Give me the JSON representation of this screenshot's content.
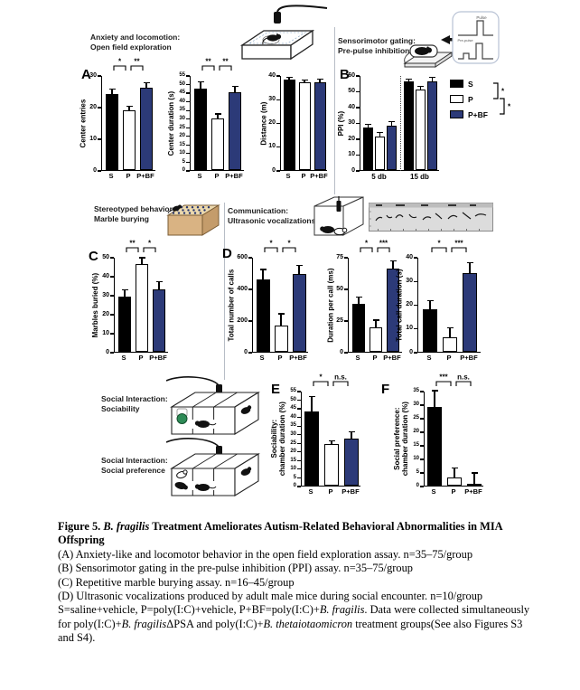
{
  "headers": {
    "open_field": "Anxiety and locomotion:\nOpen field exploration",
    "ppi": "Sensorimotor gating:\nPre-pulse inhibition",
    "marble": "Stereotyped behavior:\nMarble burying",
    "usv": "Communication:\nUltrasonic vocalizations",
    "sociability": "Social Interaction:\nSociability",
    "preference": "Social Interaction:\nSocial preference"
  },
  "panels": {
    "A": "A",
    "B": "B",
    "C": "C",
    "D": "D",
    "E": "E",
    "F": "F"
  },
  "legend": {
    "items": [
      "S",
      "P",
      "P+BF"
    ],
    "brackets": [
      {
        "a": 0,
        "b": 1,
        "label": "*"
      },
      {
        "a": 1,
        "b": 2,
        "label": "*"
      }
    ]
  },
  "pulse_diagram": {
    "pulse_label": "Pulse",
    "prepulse_label": "Pre-pulse"
  },
  "colors": {
    "series": [
      "#000000",
      "#ffffff",
      "#2c3a78"
    ],
    "bar_border": "#000000",
    "divider": "#b7bdc6",
    "marble_box": "#d9b383",
    "spectrogram_bg": "#dcdcdc",
    "novel_object_green": "#2e8b57"
  },
  "chart_data": [
    {
      "id": "A1",
      "type": "bar",
      "panel": "A",
      "ylabel": "Center entries",
      "ylim": [
        0,
        30
      ],
      "yticks": [
        0,
        10,
        20,
        30
      ],
      "categories": [
        "S",
        "P",
        "P+BF"
      ],
      "values": [
        24,
        19,
        26
      ],
      "errors": [
        1.5,
        1.2,
        1.5
      ],
      "sig": [
        {
          "a": 0,
          "b": 1,
          "label": "*"
        },
        {
          "a": 1,
          "b": 2,
          "label": "**"
        }
      ]
    },
    {
      "id": "A2",
      "type": "bar",
      "panel": "A",
      "ylabel": "Center duration (s)",
      "ylim": [
        0,
        55
      ],
      "yticks": [
        0,
        5,
        10,
        15,
        20,
        25,
        30,
        35,
        40,
        45,
        50,
        55
      ],
      "categories": [
        "S",
        "P",
        "P+BF"
      ],
      "values": [
        47,
        30,
        45
      ],
      "errors": [
        4,
        2.5,
        3.5
      ],
      "sig": [
        {
          "a": 0,
          "b": 1,
          "label": "**"
        },
        {
          "a": 1,
          "b": 2,
          "label": "**"
        }
      ]
    },
    {
      "id": "A3",
      "type": "bar",
      "panel": "A",
      "ylabel": "Distance (m)",
      "ylim": [
        0,
        40
      ],
      "yticks": [
        0,
        10,
        20,
        30,
        40
      ],
      "categories": [
        "S",
        "P",
        "P+BF"
      ],
      "values": [
        38,
        37,
        37
      ],
      "errors": [
        1,
        1,
        1.2
      ],
      "sig": []
    },
    {
      "id": "B",
      "type": "grouped-bar",
      "panel": "B",
      "ylabel": "PPI (%)",
      "ylim": [
        0,
        60
      ],
      "yticks": [
        0,
        10,
        20,
        30,
        40,
        50,
        60
      ],
      "groups": [
        "5 db",
        "15 db"
      ],
      "series": [
        {
          "name": "S",
          "values": [
            27,
            56
          ],
          "errors": [
            1.8,
            1.5
          ]
        },
        {
          "name": "P",
          "values": [
            21,
            51
          ],
          "errors": [
            2.5,
            2
          ]
        },
        {
          "name": "P+BF",
          "values": [
            28,
            56
          ],
          "errors": [
            2.5,
            2.5
          ]
        }
      ],
      "divider": "dotted"
    },
    {
      "id": "C",
      "type": "bar",
      "panel": "C",
      "ylabel": "Marbles buried (%)",
      "ylim": [
        0,
        50
      ],
      "yticks": [
        0,
        10,
        20,
        30,
        40,
        50
      ],
      "categories": [
        "S",
        "P",
        "P+BF"
      ],
      "values": [
        29,
        46,
        33
      ],
      "errors": [
        3.5,
        3.5,
        4
      ],
      "sig": [
        {
          "a": 0,
          "b": 1,
          "label": "**"
        },
        {
          "a": 1,
          "b": 2,
          "label": "*"
        }
      ]
    },
    {
      "id": "D1",
      "type": "bar",
      "panel": "D",
      "ylabel": "Total number of calls",
      "ylim": [
        0,
        600
      ],
      "yticks": [
        0,
        200,
        400,
        600
      ],
      "categories": [
        "S",
        "P",
        "P+BF"
      ],
      "values": [
        460,
        165,
        490
      ],
      "errors": [
        60,
        75,
        55
      ],
      "sig": [
        {
          "a": 0,
          "b": 1,
          "label": "*"
        },
        {
          "a": 1,
          "b": 2,
          "label": "*"
        }
      ]
    },
    {
      "id": "D2",
      "type": "bar",
      "panel": "D",
      "ylabel": "Duration per call (ms)",
      "ylim": [
        0,
        75
      ],
      "yticks": [
        0,
        25,
        50,
        75
      ],
      "categories": [
        "S",
        "P",
        "P+BF"
      ],
      "values": [
        38,
        19,
        66
      ],
      "errors": [
        5,
        6,
        6
      ],
      "sig": [
        {
          "a": 0,
          "b": 1,
          "label": "*"
        },
        {
          "a": 1,
          "b": 2,
          "label": "***"
        }
      ]
    },
    {
      "id": "D3",
      "type": "bar",
      "panel": "D",
      "ylabel": "Total call duration (s)",
      "ylim": [
        0,
        40
      ],
      "yticks": [
        0,
        10,
        20,
        30,
        40
      ],
      "categories": [
        "S",
        "P",
        "P+BF"
      ],
      "values": [
        18,
        6,
        33
      ],
      "errors": [
        3.5,
        4,
        4.5
      ],
      "sig": [
        {
          "a": 0,
          "b": 1,
          "label": "*"
        },
        {
          "a": 1,
          "b": 2,
          "label": "***"
        }
      ]
    },
    {
      "id": "E",
      "type": "bar",
      "panel": "E",
      "ylabel": "Sociability:\nchamber duration (%)",
      "ylim": [
        0,
        55
      ],
      "yticks": [
        0,
        5,
        10,
        15,
        20,
        25,
        30,
        35,
        40,
        45,
        50,
        55
      ],
      "categories": [
        "S",
        "P",
        "P+BF"
      ],
      "values": [
        43,
        24,
        27
      ],
      "errors": [
        8.5,
        2,
        4
      ],
      "sig": [
        {
          "a": 0,
          "b": 1,
          "label": "*"
        },
        {
          "a": 1,
          "b": 2,
          "label": "n.s."
        }
      ]
    },
    {
      "id": "F",
      "type": "bar",
      "panel": "F",
      "ylabel": "Social preference:\nchamber duration (%)",
      "ylim": [
        0,
        35
      ],
      "yticks": [
        0,
        5,
        10,
        15,
        20,
        25,
        30,
        35
      ],
      "categories": [
        "S",
        "P",
        "P+BF"
      ],
      "values": [
        29,
        3,
        0.4
      ],
      "errors": [
        6,
        3.5,
        4.3
      ],
      "sig": [
        {
          "a": 0,
          "b": 1,
          "label": "***"
        },
        {
          "a": 1,
          "b": 2,
          "label": "n.s."
        }
      ]
    }
  ],
  "caption": {
    "title": [
      {
        "t": "Figure 5. ",
        "b": 1
      },
      {
        "t": "B. fragilis",
        "b": 1,
        "i": 1
      },
      {
        "t": " Treatment Ameliorates Autism-Related Behavioral Abnormalities in MIA Offspring",
        "b": 1
      }
    ],
    "line_a": [
      {
        "t": "(A) Anxiety-like and locomotor behavior in the open field exploration assay. n=35–75/group"
      }
    ],
    "line_b": [
      {
        "t": "(B) Sensorimotor gating in the pre-pulse inhibition (PPI) assay. n=35–75/group"
      }
    ],
    "line_c": [
      {
        "t": "(C) Repetitive marble burying assay. n=16–45/group"
      }
    ],
    "line_d": [
      {
        "t": "(D) Ultrasonic vocalizations produced by adult male mice during social encounter. n=10/group"
      }
    ],
    "line_s": [
      {
        "t": "S=saline+vehicle, P=poly(I:C)+vehicle, P+BF=poly(I:C)+"
      },
      {
        "t": "B. fragilis",
        "i": 1
      },
      {
        "t": ". Data were collected simultaneously for poly(I:C)+"
      },
      {
        "t": "B. fragilis",
        "i": 1
      },
      {
        "t": "ΔPSA and poly(I:C)+"
      },
      {
        "t": "B. thetaiotaomicron",
        "i": 1
      },
      {
        "t": " treatment groups(See also Figures S3 and S4)."
      }
    ]
  }
}
